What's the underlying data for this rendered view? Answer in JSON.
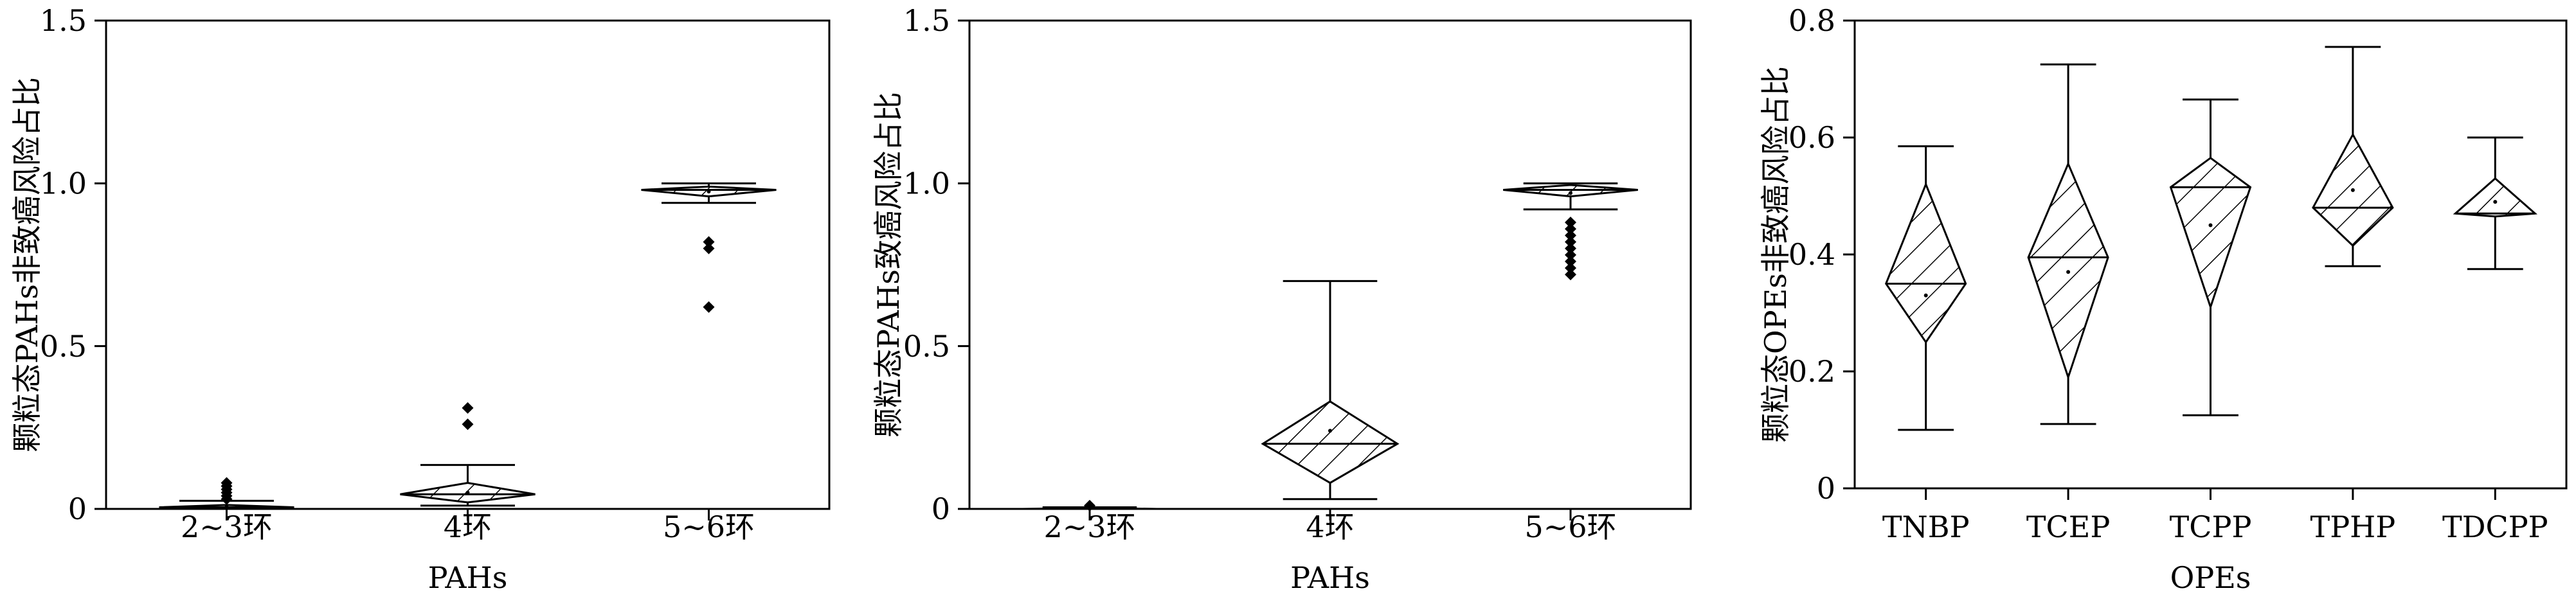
{
  "chart_data": [
    {
      "type": "box",
      "xlabel": "PAHs",
      "ylabel": "颗粒态PAHs非致癌风险占比",
      "categories": [
        "2~3环",
        "4环",
        "5~6环"
      ],
      "yticks": [
        "0",
        "0.5",
        "1.0",
        "1.5"
      ],
      "ylim": [
        0,
        1.5
      ],
      "grid": false,
      "boxes": [
        {
          "category": "2~3环",
          "whisker_low": 0.0,
          "q1": 0.002,
          "median": 0.005,
          "q3": 0.012,
          "whisker_high": 0.025,
          "mean": 0.006,
          "outliers": [
            0.03,
            0.04,
            0.05,
            0.06,
            0.07,
            0.08
          ]
        },
        {
          "category": "4环",
          "whisker_low": 0.01,
          "q1": 0.02,
          "median": 0.045,
          "q3": 0.08,
          "whisker_high": 0.135,
          "mean": 0.05,
          "outliers": [
            0.26,
            0.31
          ]
        },
        {
          "category": "5~6环",
          "whisker_low": 0.94,
          "q1": 0.96,
          "median": 0.98,
          "q3": 0.99,
          "whisker_high": 1.0,
          "mean": 0.975,
          "outliers": [
            0.8,
            0.82,
            0.62
          ]
        }
      ]
    },
    {
      "type": "box",
      "xlabel": "PAHs",
      "ylabel": "颗粒态PAHs致癌风险占比",
      "categories": [
        "2~3环",
        "4环",
        "5~6环"
      ],
      "yticks": [
        "0",
        "0.5",
        "1.0",
        "1.5"
      ],
      "ylim": [
        0,
        1.5
      ],
      "grid": false,
      "boxes": [
        {
          "category": "2~3环",
          "whisker_low": 0.0,
          "q1": 0.0,
          "median": 0.0,
          "q3": 0.003,
          "whisker_high": 0.005,
          "mean": 0.001,
          "outliers": [
            0.01
          ]
        },
        {
          "category": "4环",
          "whisker_low": 0.03,
          "q1": 0.08,
          "median": 0.2,
          "q3": 0.33,
          "whisker_high": 0.7,
          "mean": 0.24,
          "outliers": []
        },
        {
          "category": "5~6环",
          "whisker_low": 0.92,
          "q1": 0.96,
          "median": 0.98,
          "q3": 0.995,
          "whisker_high": 1.0,
          "mean": 0.97,
          "outliers": [
            0.88,
            0.86,
            0.84,
            0.82,
            0.8,
            0.78,
            0.76,
            0.74,
            0.72
          ]
        }
      ]
    },
    {
      "type": "box",
      "xlabel": "OPEs",
      "ylabel": "颗粒态OPEs非致癌风险占比",
      "categories": [
        "TNBP",
        "TCEP",
        "TCPP",
        "TPHP",
        "TDCPP"
      ],
      "yticks": [
        "0",
        "0.2",
        "0.4",
        "0.6",
        "0.8"
      ],
      "ylim": [
        0,
        0.8
      ],
      "grid": false,
      "boxes": [
        {
          "category": "TNBP",
          "whisker_low": 0.1,
          "q1": 0.25,
          "median": 0.35,
          "q3": 0.52,
          "whisker_high": 0.585,
          "mean": 0.33,
          "outliers": []
        },
        {
          "category": "TCEP",
          "whisker_low": 0.11,
          "q1": 0.19,
          "median": 0.395,
          "q3": 0.555,
          "whisker_high": 0.725,
          "mean": 0.37,
          "outliers": []
        },
        {
          "category": "TCPP",
          "whisker_low": 0.125,
          "q1": 0.31,
          "median": 0.515,
          "q3": 0.565,
          "whisker_high": 0.665,
          "mean": 0.45,
          "outliers": []
        },
        {
          "category": "TPHP",
          "whisker_low": 0.38,
          "q1": 0.415,
          "median": 0.48,
          "q3": 0.605,
          "whisker_high": 0.755,
          "mean": 0.51,
          "outliers": []
        },
        {
          "category": "TDCPP",
          "whisker_low": 0.375,
          "q1": 0.465,
          "median": 0.47,
          "q3": 0.53,
          "whisker_high": 0.6,
          "mean": 0.49,
          "outliers": []
        }
      ]
    }
  ]
}
